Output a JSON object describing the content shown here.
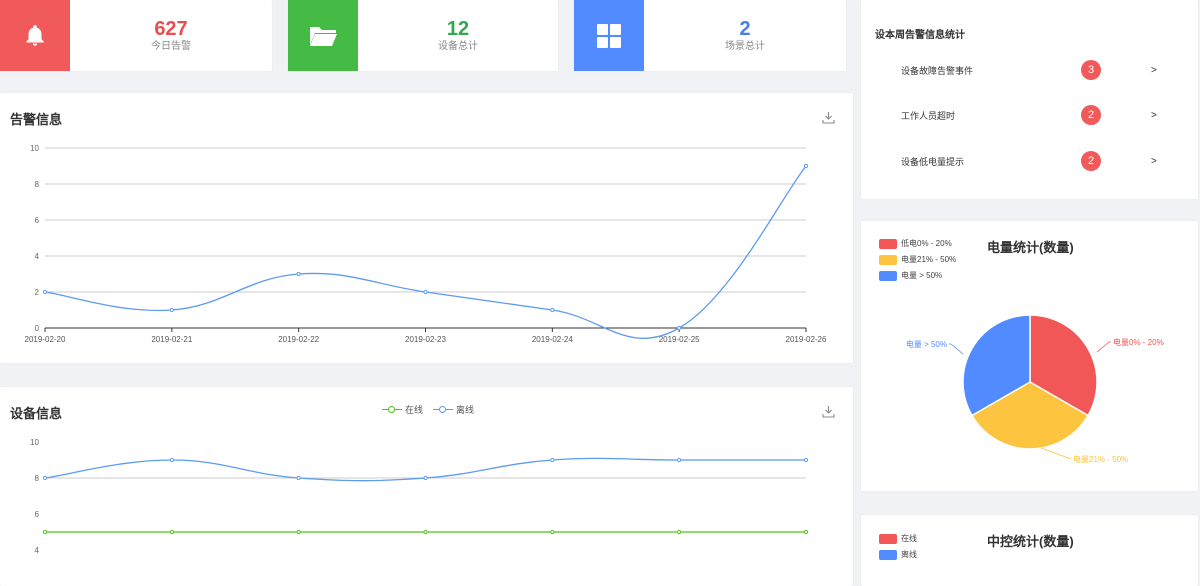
{
  "stats": [
    {
      "value": "627",
      "label": "今日告警",
      "color": "#f15a5a",
      "icon": "bell-icon",
      "value_color": "#e84e4e"
    },
    {
      "value": "12",
      "label": "设备总计",
      "color": "#44bb44",
      "icon": "folder-icon",
      "value_color": "#2fa84f"
    },
    {
      "value": "2",
      "label": "场景总计",
      "color": "#528bff",
      "icon": "grid-icon",
      "value_color": "#4a7fe8"
    }
  ],
  "alarm_panel": {
    "title": "告警信息"
  },
  "device_panel": {
    "title": "设备信息"
  },
  "alarm_chart": {
    "type": "line",
    "x": [
      "2019-02-20",
      "2019-02-21",
      "2019-02-22",
      "2019-02-23",
      "2019-02-24",
      "2019-02-25",
      "2019-02-26"
    ],
    "series": [
      {
        "values": [
          2,
          1,
          3,
          2,
          1,
          0,
          9
        ],
        "color": "#5b9bf0"
      }
    ],
    "yticks": [
      "0",
      "2",
      "4",
      "6",
      "8",
      "10"
    ],
    "ylim": [
      0,
      10
    ],
    "grid": true
  },
  "device_chart": {
    "type": "line",
    "legend": [
      "在线",
      "离线"
    ],
    "x": [
      "2019-02-20",
      "2019-02-21",
      "2019-02-22",
      "2019-02-23",
      "2019-02-24",
      "2019-02-25",
      "2019-02-26"
    ],
    "series": [
      {
        "name": "在线",
        "values": [
          5,
          5,
          5,
          5,
          5,
          5,
          5
        ],
        "color": "#52c41a"
      },
      {
        "name": "离线",
        "values": [
          8,
          9,
          8,
          8,
          9,
          9,
          9
        ],
        "color": "#5b9bf0"
      }
    ],
    "yticks": [
      "4",
      "6",
      "8",
      "10"
    ],
    "grid": true
  },
  "stat_panel": {
    "title": "设本周告警信息统计",
    "items": [
      {
        "name": "设备故障告警事件",
        "count": "3",
        "chev": ">"
      },
      {
        "name": "工作人员超时",
        "count": "2",
        "chev": ">"
      },
      {
        "name": "设备低电量提示",
        "count": "2",
        "chev": ">"
      }
    ]
  },
  "power_panel": {
    "title": "电量统计(数量)",
    "legend": [
      "低电0% - 20%",
      "电量21% - 50%",
      "电量 > 50%"
    ],
    "slice_labels": [
      "电量0% - 20%",
      "电量21% - 50%",
      "电量 > 50%"
    ],
    "colors": [
      "#f25757",
      "#fcc43f",
      "#528bff"
    ]
  },
  "power_chart": {
    "type": "pie",
    "categories": [
      "电量0% - 20%",
      "电量21% - 50%",
      "电量 > 50%"
    ],
    "values": [
      1,
      1,
      1
    ]
  },
  "control_panel": {
    "title": "中控统计(数量)",
    "legend": [
      "在线",
      "离线"
    ],
    "colors": [
      "#f25757",
      "#528bff"
    ]
  }
}
